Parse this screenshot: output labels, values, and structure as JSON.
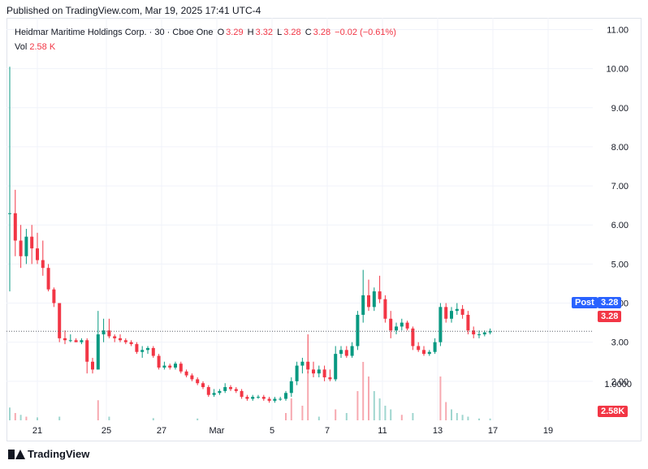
{
  "header": {
    "published": "Published on TradingView.com, Mar 19, 2025 17:41 UTC-4"
  },
  "legend": {
    "name": "Heidmar Maritime Holdings Corp. · 30 · Cboe One",
    "o_label": "O",
    "o": "3.29",
    "h_label": "H",
    "h": "3.32",
    "l_label": "L",
    "l": "3.28",
    "c_label": "C",
    "c": "3.28",
    "change": "−0.02 (−0.61%)",
    "vol_label": "Vol",
    "vol": "2.58 K"
  },
  "tags": {
    "post_label": "Post",
    "post_value": "3.28",
    "last_value": "3.28",
    "vol_value": "2.58K"
  },
  "footer": {
    "brand": "TradingView"
  },
  "colors": {
    "up": "#089981",
    "down": "#f23645",
    "post": "#2962ff",
    "vol_up": "#9fd6cf",
    "vol_down": "#f7a9b0"
  },
  "chart_data": {
    "type": "candlestick",
    "y_ticks": [
      "11.00",
      "10.00",
      "9.00",
      "8.00",
      "7.00",
      "6.00",
      "5.00",
      "4.00",
      "3.00",
      "2.00"
    ],
    "y_tick_values": [
      11,
      10,
      9,
      8,
      7,
      6,
      5,
      4,
      3,
      2
    ],
    "ylim": [
      1.0,
      11.3
    ],
    "vol_tick": "1.0000",
    "x_ticks": [
      "21",
      "25",
      "27",
      "Mar",
      "5",
      "7",
      "11",
      "13",
      "17",
      "19"
    ],
    "x_tick_positions": [
      2,
      7,
      11,
      15,
      19,
      23,
      27,
      31,
      35,
      39
    ],
    "x_range": [
      0,
      42
    ],
    "last_price": 3.28,
    "candles": [
      [
        0.0,
        6.3,
        10.05,
        4.3,
        6.3
      ],
      [
        0.4,
        6.3,
        6.9,
        5.2,
        5.6
      ],
      [
        0.8,
        5.6,
        6.0,
        4.9,
        5.2
      ],
      [
        1.2,
        5.2,
        5.9,
        5.0,
        5.7
      ],
      [
        1.6,
        5.7,
        6.0,
        5.0,
        5.4
      ],
      [
        2.0,
        5.4,
        5.8,
        5.0,
        5.1
      ],
      [
        2.4,
        5.1,
        5.6,
        4.7,
        4.9
      ],
      [
        2.8,
        4.9,
        5.0,
        4.3,
        4.35
      ],
      [
        3.2,
        4.35,
        4.4,
        3.9,
        4.0
      ],
      [
        3.6,
        4.0,
        4.0,
        3.0,
        3.1
      ],
      [
        4.0,
        3.1,
        3.3,
        2.95,
        3.05
      ],
      [
        4.4,
        3.05,
        3.2,
        3.0,
        3.05
      ],
      [
        4.8,
        3.05,
        3.1,
        3.0,
        3.0
      ],
      [
        5.2,
        3.0,
        3.1,
        2.95,
        3.05
      ],
      [
        5.6,
        3.05,
        3.1,
        2.2,
        2.5
      ],
      [
        6.0,
        2.5,
        2.6,
        2.2,
        2.3
      ],
      [
        6.4,
        2.3,
        3.8,
        2.3,
        3.2
      ],
      [
        6.8,
        3.2,
        3.6,
        3.0,
        3.3
      ],
      [
        7.2,
        3.3,
        3.6,
        3.1,
        3.15
      ],
      [
        7.6,
        3.15,
        3.2,
        3.0,
        3.1
      ],
      [
        8.0,
        3.1,
        3.2,
        3.0,
        3.05
      ],
      [
        8.4,
        3.05,
        3.1,
        2.95,
        3.0
      ],
      [
        8.8,
        3.0,
        3.05,
        2.9,
        2.95
      ],
      [
        9.2,
        2.95,
        3.0,
        2.7,
        2.75
      ],
      [
        9.6,
        2.75,
        2.9,
        2.6,
        2.8
      ],
      [
        10.0,
        2.8,
        2.9,
        2.7,
        2.85
      ],
      [
        10.4,
        2.85,
        2.9,
        2.6,
        2.65
      ],
      [
        10.8,
        2.65,
        2.7,
        2.3,
        2.35
      ],
      [
        11.2,
        2.35,
        2.5,
        2.3,
        2.4
      ],
      [
        11.6,
        2.4,
        2.45,
        2.3,
        2.35
      ],
      [
        12.0,
        2.35,
        2.5,
        2.3,
        2.45
      ],
      [
        12.4,
        2.45,
        2.5,
        2.2,
        2.25
      ],
      [
        12.8,
        2.25,
        2.3,
        2.1,
        2.15
      ],
      [
        13.2,
        2.15,
        2.2,
        2.0,
        2.05
      ],
      [
        13.6,
        2.05,
        2.1,
        1.9,
        1.95
      ],
      [
        14.0,
        1.95,
        2.0,
        1.8,
        1.85
      ],
      [
        14.4,
        1.85,
        1.9,
        1.6,
        1.65
      ],
      [
        14.8,
        1.65,
        1.8,
        1.6,
        1.7
      ],
      [
        15.2,
        1.7,
        1.8,
        1.65,
        1.75
      ],
      [
        15.6,
        1.75,
        1.95,
        1.7,
        1.85
      ],
      [
        16.0,
        1.85,
        1.9,
        1.75,
        1.8
      ],
      [
        16.4,
        1.8,
        1.85,
        1.7,
        1.75
      ],
      [
        16.8,
        1.75,
        1.8,
        1.55,
        1.6
      ],
      [
        17.2,
        1.6,
        1.65,
        1.5,
        1.55
      ],
      [
        17.6,
        1.55,
        1.65,
        1.5,
        1.6
      ],
      [
        18.0,
        1.6,
        1.65,
        1.55,
        1.6
      ],
      [
        18.4,
        1.6,
        1.65,
        1.5,
        1.55
      ],
      [
        18.8,
        1.55,
        1.6,
        1.45,
        1.5
      ],
      [
        19.2,
        1.5,
        1.6,
        1.45,
        1.55
      ],
      [
        19.6,
        1.55,
        1.6,
        1.5,
        1.55
      ],
      [
        20.0,
        1.55,
        1.75,
        1.5,
        1.7
      ],
      [
        20.4,
        1.7,
        2.1,
        1.6,
        2.0
      ],
      [
        20.8,
        2.0,
        2.5,
        1.9,
        2.4
      ],
      [
        21.2,
        2.4,
        2.6,
        2.2,
        2.5
      ],
      [
        21.6,
        2.5,
        3.2,
        2.2,
        2.3
      ],
      [
        22.0,
        2.3,
        2.5,
        2.1,
        2.2
      ],
      [
        22.4,
        2.2,
        2.4,
        2.1,
        2.3
      ],
      [
        22.8,
        2.3,
        2.4,
        2.0,
        2.1
      ],
      [
        23.2,
        2.1,
        2.3,
        2.0,
        2.05
      ],
      [
        23.6,
        2.05,
        2.9,
        2.0,
        2.7
      ],
      [
        24.0,
        2.7,
        2.9,
        2.6,
        2.8
      ],
      [
        24.4,
        2.8,
        2.9,
        2.6,
        2.65
      ],
      [
        24.8,
        2.65,
        3.0,
        2.6,
        2.9
      ],
      [
        25.2,
        2.9,
        3.8,
        2.8,
        3.7
      ],
      [
        25.6,
        3.7,
        4.85,
        3.5,
        4.2
      ],
      [
        26.0,
        4.2,
        4.6,
        3.8,
        3.9
      ],
      [
        26.4,
        3.9,
        4.4,
        3.8,
        4.3
      ],
      [
        26.8,
        4.3,
        4.7,
        4.0,
        4.1
      ],
      [
        27.2,
        4.1,
        4.2,
        3.5,
        3.6
      ],
      [
        27.6,
        3.6,
        3.8,
        3.1,
        3.3
      ],
      [
        28.0,
        3.3,
        3.5,
        3.2,
        3.4
      ],
      [
        28.4,
        3.4,
        3.6,
        3.3,
        3.5
      ],
      [
        28.8,
        3.5,
        3.55,
        3.3,
        3.35
      ],
      [
        29.2,
        3.35,
        3.4,
        2.8,
        2.9
      ],
      [
        29.6,
        2.9,
        3.0,
        2.75,
        2.8
      ],
      [
        30.0,
        2.8,
        2.9,
        2.65,
        2.7
      ],
      [
        30.4,
        2.7,
        2.8,
        2.65,
        2.75
      ],
      [
        30.8,
        2.75,
        3.1,
        2.7,
        3.0
      ],
      [
        31.2,
        3.0,
        4.0,
        2.9,
        3.9
      ],
      [
        31.6,
        3.9,
        4.0,
        3.5,
        3.6
      ],
      [
        32.0,
        3.6,
        3.9,
        3.5,
        3.8
      ],
      [
        32.4,
        3.8,
        4.0,
        3.7,
        3.85
      ],
      [
        32.8,
        3.85,
        3.95,
        3.6,
        3.7
      ],
      [
        33.2,
        3.7,
        3.8,
        3.2,
        3.3
      ],
      [
        33.6,
        3.3,
        3.4,
        3.1,
        3.2
      ],
      [
        34.0,
        3.2,
        3.3,
        3.1,
        3.2
      ],
      [
        34.4,
        3.2,
        3.3,
        3.15,
        3.25
      ],
      [
        34.8,
        3.25,
        3.35,
        3.2,
        3.28
      ]
    ],
    "volumes": [
      [
        0.0,
        0.35,
        1
      ],
      [
        0.4,
        0.2,
        0
      ],
      [
        0.8,
        0.15,
        1
      ],
      [
        1.2,
        0.1,
        0
      ],
      [
        2.0,
        0.08,
        1
      ],
      [
        3.6,
        0.1,
        1
      ],
      [
        6.4,
        0.55,
        0
      ],
      [
        7.2,
        0.1,
        1
      ],
      [
        10.4,
        0.06,
        1
      ],
      [
        13.6,
        0.05,
        1
      ],
      [
        20.0,
        0.2,
        0
      ],
      [
        20.4,
        0.6,
        0
      ],
      [
        21.6,
        1.35,
        0
      ],
      [
        21.2,
        0.4,
        0
      ],
      [
        22.4,
        0.1,
        1
      ],
      [
        23.6,
        0.3,
        0
      ],
      [
        24.4,
        0.2,
        1
      ],
      [
        25.2,
        0.8,
        0
      ],
      [
        25.6,
        1.6,
        0
      ],
      [
        26.0,
        1.2,
        0
      ],
      [
        26.4,
        0.8,
        1
      ],
      [
        26.8,
        0.6,
        1
      ],
      [
        27.2,
        0.4,
        1
      ],
      [
        27.6,
        0.3,
        1
      ],
      [
        28.4,
        0.15,
        0
      ],
      [
        29.2,
        0.2,
        1
      ],
      [
        31.2,
        1.2,
        0
      ],
      [
        31.6,
        0.5,
        0
      ],
      [
        32.0,
        0.3,
        1
      ],
      [
        32.4,
        0.2,
        1
      ],
      [
        32.8,
        0.15,
        1
      ],
      [
        33.2,
        0.1,
        1
      ],
      [
        34.0,
        0.05,
        1
      ],
      [
        34.8,
        0.05,
        1
      ]
    ]
  }
}
